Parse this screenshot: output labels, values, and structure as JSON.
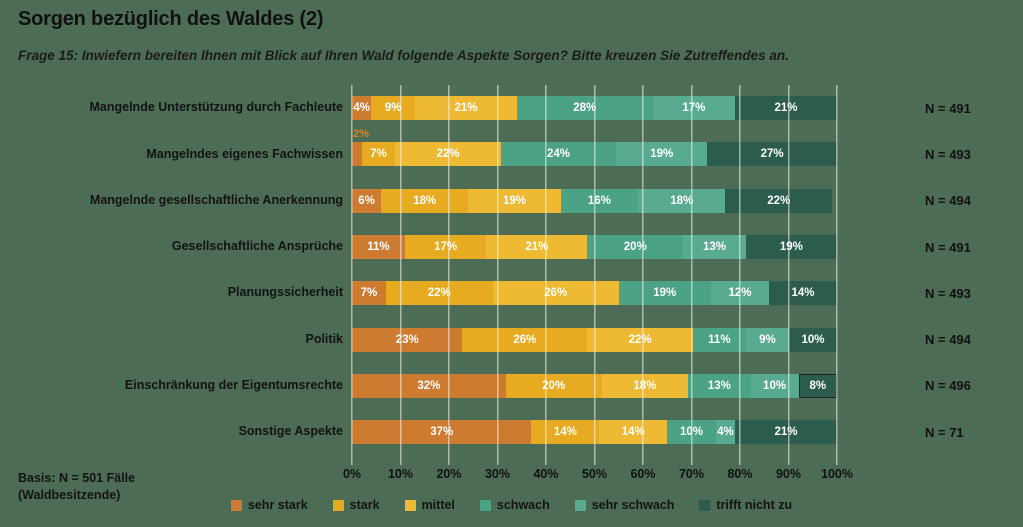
{
  "page": {
    "background": "#4D6C55"
  },
  "header": {
    "title": "Sorgen bezüglich des Waldes (2)",
    "subtitle": "Frage 15: Inwiefern bereiten Ihnen mit Blick auf Ihren Wald folgende Aspekte Sorgen? Bitte kreuzen Sie Zutreffendes an."
  },
  "footnote": {
    "line1": "Basis: N = 501 Fälle",
    "line2": "(Waldbesitzende)"
  },
  "chart_data": {
    "type": "bar",
    "stacked": true,
    "orientation": "horizontal",
    "unit": "%",
    "xlim": [
      0,
      100
    ],
    "grid": true,
    "legend_position": "bottom",
    "x_ticks": [
      "0%",
      "10%",
      "20%",
      "30%",
      "40%",
      "50%",
      "60%",
      "70%",
      "80%",
      "90%",
      "100%"
    ],
    "categories": [
      "Mangelnde Unterstützung durch Fachleute",
      "Mangelndes eigenes Fachwissen",
      "Mangelnde gesellschaftliche Anerkennung",
      "Gesellschaftliche Ansprüche",
      "Planungssicherheit",
      "Politik",
      "Einschränkung der Eigentumsrechte",
      "Sonstige Aspekte"
    ],
    "n_labels": [
      "N = 491",
      "N = 493",
      "N = 494",
      "N = 491",
      "N = 493",
      "N = 494",
      "N = 496",
      "N = 71"
    ],
    "series": [
      {
        "name": "sehr stark",
        "color": "#CE7B32",
        "values": [
          4,
          2,
          6,
          11,
          7,
          23,
          32,
          37
        ]
      },
      {
        "name": "stark",
        "color": "#E7AB22",
        "values": [
          9,
          7,
          18,
          17,
          22,
          26,
          20,
          14
        ]
      },
      {
        "name": "mittel",
        "color": "#EFBA33",
        "values": [
          21,
          22,
          19,
          21,
          26,
          22,
          18,
          14
        ]
      },
      {
        "name": "schwach",
        "color": "#4CA284",
        "values": [
          28,
          24,
          16,
          20,
          19,
          11,
          13,
          10
        ]
      },
      {
        "name": "sehr schwach",
        "color": "#58AB91",
        "values": [
          17,
          19,
          18,
          13,
          12,
          9,
          10,
          4
        ]
      },
      {
        "name": "trifft nicht zu",
        "color": "#2B5C4E",
        "values": [
          21,
          27,
          22,
          19,
          14,
          10,
          8,
          21
        ]
      }
    ],
    "min_inline_label_value": 4,
    "annotations": [
      {
        "category_index": 1,
        "series_index": 0,
        "text": "2%",
        "placement": "above-bar-left",
        "color": "#D8861D"
      }
    ],
    "highlighted_segment": {
      "category_index": 6,
      "series_index": 5,
      "border_color": "#18291F"
    }
  }
}
